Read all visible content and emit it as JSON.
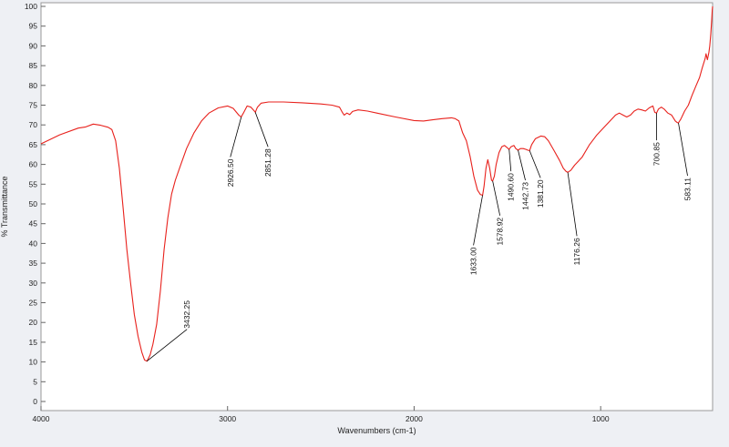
{
  "chart_data": {
    "type": "line",
    "title": "",
    "xlabel": "Wavenumbers (cm-1)",
    "ylabel": "% Transmittance",
    "xlim": [
      4000,
      400
    ],
    "ylim": [
      0,
      100
    ],
    "x_ticks": [
      4000,
      3000,
      2000,
      1000
    ],
    "y_ticks": [
      0,
      5,
      10,
      15,
      20,
      25,
      30,
      35,
      40,
      45,
      50,
      55,
      60,
      65,
      70,
      75,
      80,
      85,
      90,
      95,
      100
    ],
    "grid": false,
    "series": [
      {
        "color": "#e8211c",
        "points": [
          [
            4000,
            65.2
          ],
          [
            3900,
            67.5
          ],
          [
            3800,
            69.2
          ],
          [
            3760,
            69.5
          ],
          [
            3720,
            70.2
          ],
          [
            3680,
            69.9
          ],
          [
            3640,
            69.4
          ],
          [
            3620,
            68.8
          ],
          [
            3600,
            66.0
          ],
          [
            3580,
            59.0
          ],
          [
            3560,
            49.0
          ],
          [
            3540,
            38.5
          ],
          [
            3520,
            30.0
          ],
          [
            3500,
            22.0
          ],
          [
            3480,
            16.5
          ],
          [
            3460,
            12.5
          ],
          [
            3445,
            10.5
          ],
          [
            3432,
            10.2
          ],
          [
            3415,
            11.8
          ],
          [
            3400,
            14.5
          ],
          [
            3380,
            19.5
          ],
          [
            3360,
            28.0
          ],
          [
            3340,
            38.5
          ],
          [
            3320,
            46.5
          ],
          [
            3300,
            52.5
          ],
          [
            3280,
            56.0
          ],
          [
            3250,
            60.0
          ],
          [
            3220,
            64.0
          ],
          [
            3180,
            68.0
          ],
          [
            3140,
            71.0
          ],
          [
            3100,
            73.0
          ],
          [
            3050,
            74.3
          ],
          [
            3000,
            74.8
          ],
          [
            2970,
            74.2
          ],
          [
            2940,
            72.5
          ],
          [
            2927,
            72.0
          ],
          [
            2915,
            73.0
          ],
          [
            2895,
            74.8
          ],
          [
            2875,
            74.5
          ],
          [
            2858,
            73.6
          ],
          [
            2851,
            73.2
          ],
          [
            2840,
            74.5
          ],
          [
            2820,
            75.5
          ],
          [
            2780,
            75.8
          ],
          [
            2700,
            75.8
          ],
          [
            2600,
            75.6
          ],
          [
            2500,
            75.3
          ],
          [
            2440,
            75.0
          ],
          [
            2400,
            74.5
          ],
          [
            2385,
            73.2
          ],
          [
            2375,
            72.5
          ],
          [
            2360,
            73.0
          ],
          [
            2345,
            72.6
          ],
          [
            2330,
            73.4
          ],
          [
            2300,
            73.8
          ],
          [
            2250,
            73.5
          ],
          [
            2200,
            73.0
          ],
          [
            2100,
            72.0
          ],
          [
            2000,
            71.1
          ],
          [
            1950,
            71.0
          ],
          [
            1900,
            71.3
          ],
          [
            1850,
            71.6
          ],
          [
            1800,
            71.8
          ],
          [
            1780,
            71.6
          ],
          [
            1760,
            71.0
          ],
          [
            1740,
            68.0
          ],
          [
            1720,
            66.0
          ],
          [
            1700,
            62.0
          ],
          [
            1680,
            57.0
          ],
          [
            1660,
            53.5
          ],
          [
            1645,
            52.4
          ],
          [
            1633,
            52.2
          ],
          [
            1625,
            54.5
          ],
          [
            1615,
            59.0
          ],
          [
            1605,
            61.2
          ],
          [
            1595,
            59.0
          ],
          [
            1585,
            56.0
          ],
          [
            1579,
            55.8
          ],
          [
            1570,
            57.0
          ],
          [
            1560,
            60.0
          ],
          [
            1545,
            63.0
          ],
          [
            1530,
            64.5
          ],
          [
            1515,
            64.8
          ],
          [
            1500,
            64.2
          ],
          [
            1491,
            63.8
          ],
          [
            1480,
            64.5
          ],
          [
            1465,
            64.8
          ],
          [
            1455,
            64.0
          ],
          [
            1443,
            63.6
          ],
          [
            1430,
            64.0
          ],
          [
            1415,
            64.0
          ],
          [
            1400,
            63.8
          ],
          [
            1390,
            63.6
          ],
          [
            1381,
            63.5
          ],
          [
            1370,
            65.0
          ],
          [
            1350,
            66.5
          ],
          [
            1320,
            67.2
          ],
          [
            1300,
            67.0
          ],
          [
            1280,
            66.0
          ],
          [
            1250,
            63.5
          ],
          [
            1220,
            61.0
          ],
          [
            1200,
            59.0
          ],
          [
            1185,
            58.2
          ],
          [
            1176,
            58.0
          ],
          [
            1160,
            58.5
          ],
          [
            1140,
            59.8
          ],
          [
            1100,
            61.8
          ],
          [
            1060,
            65.0
          ],
          [
            1020,
            67.5
          ],
          [
            980,
            69.5
          ],
          [
            950,
            71.0
          ],
          [
            920,
            72.5
          ],
          [
            900,
            73.0
          ],
          [
            880,
            72.5
          ],
          [
            860,
            72.0
          ],
          [
            840,
            72.5
          ],
          [
            820,
            73.5
          ],
          [
            800,
            74.0
          ],
          [
            780,
            73.8
          ],
          [
            760,
            73.5
          ],
          [
            740,
            74.3
          ],
          [
            720,
            74.8
          ],
          [
            710,
            73.2
          ],
          [
            701,
            73.0
          ],
          [
            690,
            74.0
          ],
          [
            675,
            74.5
          ],
          [
            660,
            74.0
          ],
          [
            640,
            73.0
          ],
          [
            620,
            72.5
          ],
          [
            600,
            71.0
          ],
          [
            590,
            70.6
          ],
          [
            583,
            70.5
          ],
          [
            570,
            71.5
          ],
          [
            550,
            73.5
          ],
          [
            530,
            75.0
          ],
          [
            510,
            77.5
          ],
          [
            490,
            79.8
          ],
          [
            470,
            82.0
          ],
          [
            455,
            84.5
          ],
          [
            440,
            86.8
          ],
          [
            435,
            88.0
          ],
          [
            428,
            86.5
          ],
          [
            420,
            88.3
          ],
          [
            415,
            90.0
          ],
          [
            410,
            93.0
          ],
          [
            405,
            96.5
          ],
          [
            402,
            99.0
          ],
          [
            400,
            100.0
          ]
        ]
      }
    ],
    "peaks": [
      {
        "label": "3432.25",
        "x": 3432.25,
        "y": 10.2
      },
      {
        "label": "2926.50",
        "x": 2926.5,
        "y": 72.0
      },
      {
        "label": "2851.28",
        "x": 2851.28,
        "y": 73.2
      },
      {
        "label": "1633.00",
        "x": 1633.0,
        "y": 52.2
      },
      {
        "label": "1578.92",
        "x": 1578.92,
        "y": 55.8
      },
      {
        "label": "1490.60",
        "x": 1490.6,
        "y": 63.8
      },
      {
        "label": "1442.73",
        "x": 1442.73,
        "y": 63.6
      },
      {
        "label": "1381.20",
        "x": 1381.2,
        "y": 63.5
      },
      {
        "label": "1176.26",
        "x": 1176.26,
        "y": 58.0
      },
      {
        "label": "700.85",
        "x": 700.85,
        "y": 73.0
      },
      {
        "label": "583.11",
        "x": 583.11,
        "y": 70.5
      }
    ]
  }
}
